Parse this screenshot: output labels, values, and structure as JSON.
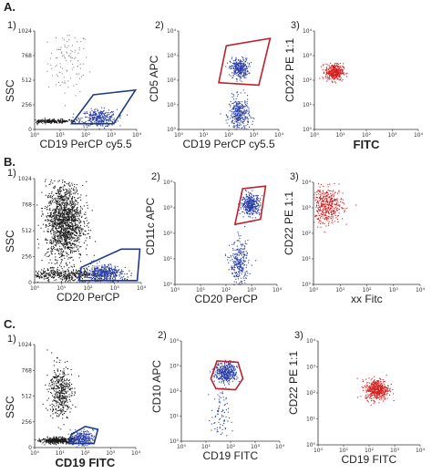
{
  "row_labels": [
    "A.",
    "B.",
    "C."
  ],
  "panel_numbers": [
    "1)",
    "2)",
    "3)"
  ],
  "colors": {
    "black": "#1a1a1a",
    "gray": "#8a8a8a",
    "blue": "#2a3fa8",
    "red": "#d42020",
    "gate_blue": "#1e3a8a",
    "gate_red": "#c0202a"
  },
  "chart_data": [
    {
      "id": "A1",
      "type": "scatter",
      "xlabel": "CD19 PerCP cy5.5",
      "ylabel": "SSC",
      "yscale": "linear",
      "xscale": "log",
      "ylim": [
        0,
        1024
      ],
      "xlim": [
        1,
        10000
      ],
      "y_ticks": [
        "1024",
        "768",
        "512",
        "256",
        "0"
      ],
      "x_ticks": [
        "10⁰",
        "10¹",
        "10²",
        "10³",
        "10⁴"
      ],
      "series": [
        {
          "color": "gray",
          "cx": 1.3,
          "cy": 700,
          "sx": 0.4,
          "sy": 170,
          "n": 110
        },
        {
          "color": "black",
          "cx": 0.6,
          "cy": 90,
          "sx": 0.5,
          "sy": 10,
          "n": 260
        },
        {
          "color": "blue",
          "cx": 2.5,
          "cy": 120,
          "sx": 0.35,
          "sy": 45,
          "n": 340
        }
      ],
      "gate": {
        "color": "gate_blue",
        "points": [
          [
            1.45,
            60
          ],
          [
            3.1,
            60
          ],
          [
            3.95,
            410
          ],
          [
            2.3,
            360
          ]
        ]
      }
    },
    {
      "id": "A2",
      "type": "scatter",
      "xlabel": "CD19 PerCP cy5.5",
      "ylabel": "CD5 APC",
      "xscale": "log",
      "yscale": "log",
      "xlim": [
        1,
        10000
      ],
      "ylim": [
        1,
        10000
      ],
      "y_ticks": [
        "10⁴",
        "10³",
        "10²",
        "10¹",
        "10⁰"
      ],
      "x_ticks": [
        "10⁰",
        "10¹",
        "10²",
        "10³",
        "10⁴"
      ],
      "series": [
        {
          "color": "blue",
          "cx": 2.4,
          "cy": 2.5,
          "sx": 0.18,
          "sy": 0.2,
          "n": 320
        },
        {
          "color": "blue",
          "cx": 2.4,
          "cy": 0.6,
          "sx": 0.2,
          "sy": 0.35,
          "n": 360
        }
      ],
      "gate": {
        "color": "gate_red",
        "points": [
          [
            1.6,
            1.9
          ],
          [
            3.2,
            1.8
          ],
          [
            3.65,
            3.7
          ],
          [
            1.9,
            3.4
          ]
        ]
      }
    },
    {
      "id": "A3",
      "type": "scatter",
      "xlabel": "FITC",
      "ylabel": "CD22 PE 1:1",
      "xscale": "log",
      "yscale": "log",
      "xlim": [
        1,
        10000
      ],
      "ylim": [
        1,
        10000
      ],
      "y_ticks": [
        "10⁴",
        "10³",
        "10²",
        "10¹",
        "10⁰"
      ],
      "x_ticks": [
        "10⁰",
        "10¹",
        "10²",
        "10³",
        "10⁴"
      ],
      "series": [
        {
          "color": "red",
          "cx": 0.75,
          "cy": 2.35,
          "sx": 0.17,
          "sy": 0.17,
          "n": 380
        }
      ]
    },
    {
      "id": "B1",
      "type": "scatter",
      "xlabel": "CD20 PerCP",
      "ylabel": "SSC",
      "xscale": "log",
      "yscale": "linear",
      "xlim": [
        1,
        10000
      ],
      "ylim": [
        0,
        1024
      ],
      "y_ticks": [
        "1024",
        "768",
        "512",
        "256",
        "0"
      ],
      "x_ticks": [
        "10⁰",
        "10¹",
        "10²",
        "10³",
        "10⁴"
      ],
      "series": [
        {
          "color": "black",
          "cx": 1.1,
          "cy": 600,
          "sx": 0.35,
          "sy": 190,
          "n": 1500
        },
        {
          "color": "black",
          "cx": 1.3,
          "cy": 80,
          "sx": 0.9,
          "sy": 30,
          "n": 500
        },
        {
          "color": "blue",
          "cx": 2.6,
          "cy": 100,
          "sx": 0.32,
          "sy": 40,
          "n": 380
        }
      ],
      "gate": {
        "color": "gate_blue",
        "points": [
          [
            1.65,
            20
          ],
          [
            3.85,
            20
          ],
          [
            3.95,
            330
          ],
          [
            3.25,
            330
          ],
          [
            1.75,
            150
          ]
        ]
      }
    },
    {
      "id": "B2",
      "type": "scatter",
      "xlabel": "CD20 PerCP",
      "ylabel": "CD11c APC",
      "xscale": "log",
      "yscale": "log",
      "xlim": [
        1,
        10000
      ],
      "ylim": [
        1,
        10000
      ],
      "y_ticks": [
        "10⁴",
        "10³",
        "10²",
        "10¹",
        "10⁰"
      ],
      "x_ticks": [
        "10⁰",
        "10¹",
        "10²",
        "10³",
        "10⁴"
      ],
      "series": [
        {
          "color": "blue",
          "cx": 2.95,
          "cy": 3.15,
          "sx": 0.18,
          "sy": 0.2,
          "n": 380
        },
        {
          "color": "blue",
          "cx": 2.5,
          "cy": 0.8,
          "sx": 0.18,
          "sy": 0.45,
          "n": 300
        }
      ],
      "gate": {
        "color": "gate_red",
        "points": [
          [
            2.35,
            2.35
          ],
          [
            3.35,
            2.55
          ],
          [
            3.55,
            3.85
          ],
          [
            2.65,
            3.75
          ]
        ]
      }
    },
    {
      "id": "B3",
      "type": "scatter",
      "xlabel": "xx Fitc",
      "ylabel": "CD22 PE 1:1",
      "xscale": "log",
      "yscale": "log",
      "xlim": [
        1,
        10000
      ],
      "ylim": [
        1,
        10000
      ],
      "y_ticks": [
        "10⁴",
        "10³",
        "10²",
        "10¹",
        "10⁰"
      ],
      "x_ticks": [
        "10⁰",
        "10¹",
        "10²",
        "10³",
        "10⁴"
      ],
      "series": [
        {
          "color": "red",
          "cx": 0.5,
          "cy": 3.1,
          "sx": 0.3,
          "sy": 0.35,
          "n": 420
        }
      ]
    },
    {
      "id": "C1",
      "type": "scatter",
      "xlabel": "CD19 FITC",
      "ylabel": "SSC",
      "xscale": "log",
      "yscale": "linear",
      "xlim": [
        1,
        10000
      ],
      "ylim": [
        0,
        1024
      ],
      "y_ticks": [
        "1024",
        "768",
        "512",
        "256",
        "0"
      ],
      "x_ticks": [
        "10⁰",
        "10¹",
        "10²",
        "10³",
        "10⁴"
      ],
      "series": [
        {
          "color": "black",
          "cx": 1.0,
          "cy": 560,
          "sx": 0.22,
          "sy": 130,
          "n": 420
        },
        {
          "color": "black",
          "cx": 0.9,
          "cy": 75,
          "sx": 0.4,
          "sy": 15,
          "n": 420
        },
        {
          "color": "blue",
          "cx": 1.85,
          "cy": 100,
          "sx": 0.22,
          "sy": 35,
          "n": 240
        }
      ],
      "gate": {
        "color": "gate_blue",
        "points": [
          [
            1.35,
            40
          ],
          [
            2.35,
            40
          ],
          [
            2.5,
            180
          ],
          [
            2.0,
            210
          ],
          [
            1.45,
            130
          ]
        ]
      }
    },
    {
      "id": "C2",
      "type": "scatter",
      "xlabel": "CD19 FITC",
      "ylabel": "CD10 APC",
      "xscale": "log",
      "yscale": "log",
      "xlim": [
        1,
        10000
      ],
      "ylim": [
        1,
        10000
      ],
      "y_ticks": [
        "10⁴",
        "10³",
        "10²",
        "10¹",
        "10⁰"
      ],
      "x_ticks": [
        "10⁰",
        "10¹",
        "10²",
        "10³",
        "10⁴"
      ],
      "series": [
        {
          "color": "blue",
          "cx": 1.8,
          "cy": 2.75,
          "sx": 0.22,
          "sy": 0.2,
          "n": 420
        },
        {
          "color": "blue",
          "cx": 1.55,
          "cy": 1.0,
          "sx": 0.18,
          "sy": 0.55,
          "n": 80
        }
      ],
      "gate": {
        "color": "gate_red",
        "points": [
          [
            1.2,
            2.5
          ],
          [
            1.45,
            3.2
          ],
          [
            2.3,
            3.15
          ],
          [
            2.5,
            2.5
          ],
          [
            2.2,
            2.05
          ],
          [
            1.4,
            2.1
          ]
        ]
      }
    },
    {
      "id": "C3",
      "type": "scatter",
      "xlabel": "CD19 FITC",
      "ylabel": "CD22 PE 1:1",
      "xscale": "log",
      "yscale": "log",
      "xlim": [
        1,
        10000
      ],
      "ylim": [
        1,
        10000
      ],
      "y_ticks": [
        "10⁴",
        "10³",
        "10²",
        "10¹",
        "10⁰"
      ],
      "x_ticks": [
        "10⁰",
        "10¹",
        "10²",
        "10³",
        "10⁴"
      ],
      "series": [
        {
          "color": "red",
          "cx": 2.3,
          "cy": 2.15,
          "sx": 0.23,
          "sy": 0.2,
          "n": 460
        }
      ]
    }
  ]
}
